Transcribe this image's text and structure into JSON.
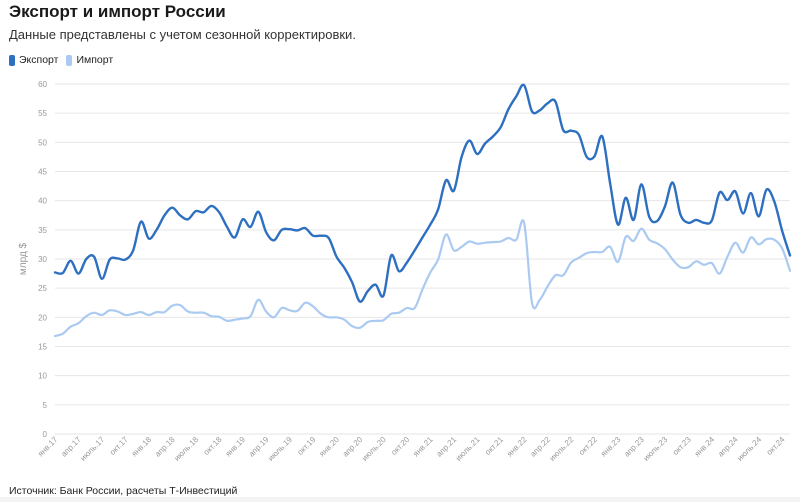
{
  "title": "Экспорт и импорт России",
  "subtitle": "Данные представлены с учетом сезонной корректировки.",
  "footer": "Источник: Банк России, расчеты Т-Инвестиций",
  "colors": {
    "export": "#2d6fc0",
    "import": "#aacaf1",
    "grid": "#e6e6e6"
  },
  "chart_data": {
    "type": "line",
    "ylabel": "млрд $",
    "ylim": [
      0,
      60
    ],
    "yticks": [
      0,
      5,
      10,
      15,
      20,
      25,
      30,
      35,
      40,
      45,
      50,
      55,
      60
    ],
    "grid": "horizontal",
    "legend_position": "top-left",
    "x_tick_labels": [
      "янв.17",
      "апр.17",
      "июль.17",
      "окт.17",
      "янв.18",
      "апр.18",
      "июль.18",
      "окт.18",
      "янв.19",
      "апр.19",
      "июль.19",
      "окт.19",
      "янв.20",
      "апр.20",
      "июль.20",
      "окт.20",
      "янв.21",
      "апр.21",
      "июль.21",
      "окт.21",
      "янв.22",
      "апр.22",
      "июль.22",
      "окт.22",
      "янв.23",
      "апр.23",
      "июль.23",
      "окт.23",
      "янв.24",
      "апр.24",
      "июль.24",
      "окт.24"
    ],
    "series": [
      {
        "name": "Экспорт",
        "values": [
          27.7,
          27.6,
          29.7,
          27.5,
          30.0,
          30.4,
          26.6,
          29.9,
          30.1,
          29.9,
          31.5,
          36.4,
          33.5,
          35.0,
          37.5,
          38.8,
          37.5,
          36.8,
          38.2,
          38.0,
          39.1,
          38.0,
          35.5,
          33.7,
          36.8,
          35.5,
          38.1,
          34.6,
          33.2,
          35.0,
          35.1,
          34.9,
          35.3,
          34.0,
          34.0,
          33.6,
          30.4,
          28.5,
          26.0,
          22.7,
          24.5,
          25.6,
          23.7,
          30.6,
          27.9,
          29.4,
          31.5,
          33.7,
          35.9,
          38.5,
          43.5,
          41.7,
          47.5,
          50.3,
          48.0,
          49.8,
          51.0,
          52.6,
          55.7,
          57.9,
          59.8,
          55.3,
          55.5,
          56.7,
          57.0,
          52.1,
          52.0,
          51.3,
          47.5,
          47.6,
          51.0,
          42.9,
          35.9,
          40.5,
          36.7,
          42.8,
          37.2,
          36.5,
          39.0,
          43.1,
          37.6,
          36.2,
          36.7,
          36.2,
          36.6,
          41.4,
          40.1,
          41.6,
          37.8,
          41.3,
          37.3,
          41.9,
          39.8,
          34.8,
          30.6
        ],
        "color": "#2d6fc0"
      },
      {
        "name": "Импорт",
        "values": [
          16.8,
          17.2,
          18.4,
          19.0,
          20.2,
          20.8,
          20.4,
          21.2,
          21.0,
          20.4,
          20.6,
          20.9,
          20.4,
          20.9,
          20.9,
          22.0,
          22.1,
          21.0,
          20.8,
          20.8,
          20.2,
          20.1,
          19.4,
          19.6,
          19.8,
          20.2,
          23.0,
          21.0,
          20.0,
          21.6,
          21.2,
          21.1,
          22.5,
          21.9,
          20.6,
          20.0,
          20.0,
          19.6,
          18.5,
          18.2,
          19.2,
          19.4,
          19.5,
          20.6,
          20.8,
          21.6,
          21.6,
          24.8,
          27.7,
          29.9,
          34.2,
          31.5,
          32.1,
          33.0,
          32.6,
          32.8,
          32.9,
          33.0,
          33.6,
          33.3,
          36.2,
          22.5,
          23.0,
          25.3,
          27.2,
          27.2,
          29.4,
          30.2,
          31.0,
          31.2,
          31.2,
          32.1,
          29.5,
          33.8,
          33.1,
          35.2,
          33.3,
          32.7,
          31.7,
          29.9,
          28.6,
          28.6,
          29.6,
          29.0,
          29.3,
          27.5,
          30.4,
          32.8,
          31.1,
          33.7,
          32.5,
          33.4,
          33.3,
          31.8,
          28.0
        ],
        "color": "#aacaf1"
      }
    ]
  }
}
